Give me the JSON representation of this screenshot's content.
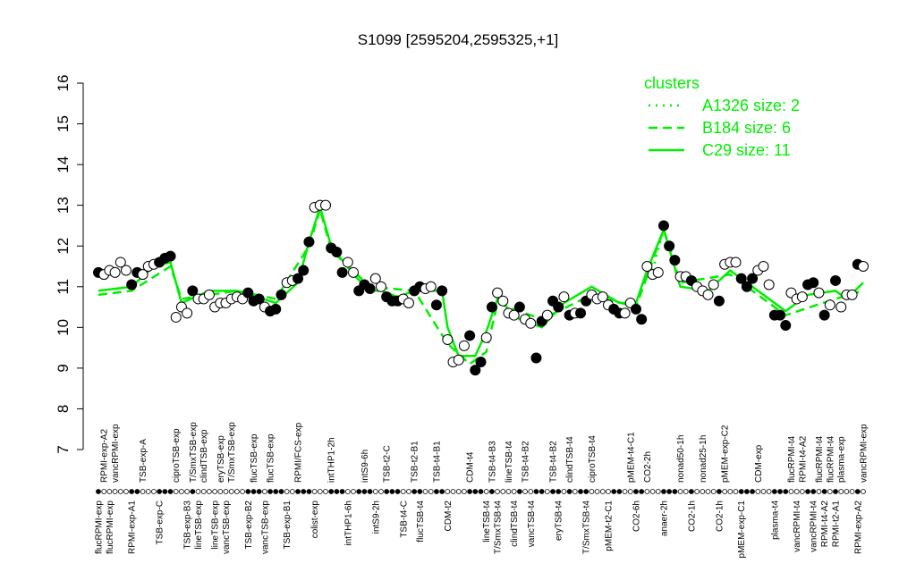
{
  "chart_data": {
    "type": "scatter",
    "title": "S1099 [2595204,2595325,+1]",
    "ylim": [
      7,
      16
    ],
    "yticks": [
      7,
      8,
      9,
      10,
      11,
      12,
      13,
      14,
      15,
      16
    ],
    "legend_title": "clusters",
    "legend_position": "top-right",
    "legend_color": "#00ee00",
    "categories": [
      "flucRPMI-exp",
      "RPMI-exp-A2",
      "flucRPMI-exp",
      "vancRPMI-exp",
      null,
      null,
      "RPMI-exp-A1",
      null,
      "TSB-exp-A",
      null,
      null,
      "TSB-exp-C",
      null,
      null,
      "ciproTSB-exp",
      null,
      "TSB-exp-B3",
      "T/SmxTSB-exp",
      "lineTSB-exp",
      "clindTSB-exp",
      null,
      "lineTSB-exp",
      "eryTSB-exp",
      "vancTSB-exp",
      "T/SmxTSB-exp",
      null,
      null,
      "TSB-exp-B2",
      "flucTSB-exp",
      null,
      "vancTSB-exp",
      "flucTSB-exp",
      null,
      null,
      "TSB-exp-B1",
      null,
      "RPMI/FCS-exp",
      null,
      null,
      "colist-exp",
      null,
      null,
      "intTHP1-2h",
      null,
      null,
      "intTHP1-6h",
      null,
      null,
      "intS9-6h",
      null,
      "intS9-2h",
      null,
      "TSB-t2-C",
      null,
      null,
      "TSB-t4-C",
      null,
      "TSB-t2-B1",
      "flucTSB-t4",
      null,
      null,
      "TSB-t4-B1",
      null,
      "CDM-t2",
      null,
      null,
      null,
      "CDM-t4",
      null,
      null,
      "lineTSB-t4",
      "TSB-t4-B3",
      "T/SmxTSB-t4",
      null,
      "lineTSB-t4",
      "clindTSB-t4",
      null,
      "TSB-t4-B2",
      "vancTSB-t4",
      null,
      null,
      null,
      "TSB-t4-B2",
      "eryTSB-t4",
      null,
      "clindTSB-t4",
      null,
      null,
      "T/SmxTSB-t4",
      "ciproTSB-t4",
      null,
      null,
      "pMEM-t2-C1",
      null,
      null,
      null,
      "pMEM-t4-C1",
      "CO2-6h",
      null,
      "CO2-2h",
      null,
      null,
      "anaer-2h",
      null,
      null,
      "nonad50-1h",
      null,
      "CO2-1h",
      null,
      "nonad25-1h",
      null,
      null,
      "CO2-1h",
      "pMEM-exp-C2",
      null,
      null,
      "pMEM-exp-C1",
      null,
      null,
      "CDM-exp",
      null,
      null,
      "plasma-t4",
      null,
      null,
      "flucRPMI-t4",
      "vancRPMI-t4",
      "RPMI-t4-A2",
      null,
      "vancRPMI-t4",
      "flucRPMI-t4",
      "RPMI-t4-A2",
      "flucRPMI-t4",
      "RPMI-t2-A1",
      "plasma-exp",
      null,
      null,
      "RPMI-exp-A2",
      "vancRPMI-exp"
    ],
    "points": {
      "values": [
        11.35,
        11.3,
        11.4,
        11.35,
        11.6,
        11.4,
        11.05,
        11.35,
        11.3,
        11.5,
        11.55,
        11.6,
        11.7,
        11.75,
        10.25,
        10.5,
        10.35,
        10.9,
        10.7,
        10.7,
        10.8,
        10.5,
        10.6,
        10.6,
        10.7,
        10.75,
        10.7,
        10.85,
        10.65,
        10.7,
        10.5,
        10.4,
        10.45,
        10.8,
        11.1,
        11.15,
        11.2,
        11.4,
        12.1,
        12.95,
        13.0,
        13.0,
        11.95,
        11.85,
        11.35,
        11.6,
        11.35,
        10.9,
        11.05,
        10.95,
        11.2,
        11.0,
        10.75,
        10.65,
        10.65,
        10.7,
        10.6,
        10.9,
        11.0,
        10.95,
        11.0,
        10.55,
        10.9,
        9.7,
        9.15,
        9.2,
        9.55,
        9.8,
        8.95,
        9.15,
        9.75,
        10.5,
        10.85,
        10.65,
        10.35,
        10.3,
        10.5,
        10.2,
        10.1,
        9.25,
        10.15,
        10.3,
        10.65,
        10.5,
        10.75,
        10.3,
        10.35,
        10.35,
        10.65,
        10.8,
        10.7,
        10.75,
        10.55,
        10.45,
        10.35,
        10.35,
        10.6,
        10.45,
        10.2,
        11.5,
        11.3,
        11.35,
        12.5,
        12.0,
        11.65,
        11.25,
        11.25,
        11.15,
        11.0,
        10.9,
        10.8,
        11.05,
        10.65,
        11.55,
        11.6,
        11.6,
        11.2,
        11.0,
        11.2,
        11.4,
        11.5,
        11.05,
        10.3,
        10.3,
        10.05,
        10.85,
        10.7,
        10.75,
        11.05,
        11.1,
        10.85,
        10.3,
        10.55,
        11.15,
        10.5,
        10.8,
        10.8,
        11.55,
        11.5
      ],
      "filled": [
        true,
        false,
        false,
        false,
        false,
        false,
        true,
        true,
        false,
        false,
        false,
        true,
        true,
        true,
        false,
        false,
        false,
        true,
        false,
        false,
        false,
        false,
        false,
        false,
        false,
        false,
        false,
        true,
        true,
        true,
        false,
        true,
        true,
        true,
        false,
        false,
        true,
        true,
        true,
        false,
        false,
        false,
        true,
        true,
        true,
        false,
        false,
        true,
        true,
        true,
        false,
        false,
        true,
        true,
        true,
        false,
        false,
        true,
        true,
        false,
        false,
        true,
        true,
        false,
        false,
        false,
        false,
        true,
        true,
        true,
        false,
        true,
        false,
        false,
        false,
        false,
        true,
        false,
        false,
        true,
        true,
        false,
        true,
        true,
        false,
        true,
        false,
        true,
        true,
        false,
        false,
        false,
        false,
        true,
        true,
        false,
        false,
        true,
        true,
        false,
        false,
        false,
        true,
        true,
        true,
        false,
        false,
        true,
        false,
        false,
        false,
        false,
        true,
        false,
        false,
        false,
        true,
        true,
        true,
        false,
        false,
        false,
        true,
        true,
        true,
        false,
        false,
        false,
        true,
        true,
        false,
        true,
        false,
        true,
        false,
        false,
        false,
        true,
        false
      ]
    },
    "series": [
      {
        "name": "A1326 size: 2",
        "color": "#00ee00",
        "style": "dotted",
        "x": [
          38,
          40,
          42,
          70,
          100,
          102,
          104
        ],
        "values": [
          12.0,
          12.9,
          12.0,
          null,
          11.4,
          12.4,
          11.6
        ]
      },
      {
        "name": "B184 size: 6",
        "color": "#00ee00",
        "style": "dashed",
        "x": [
          0,
          6,
          13,
          15,
          25,
          32,
          38,
          40,
          42,
          49,
          57,
          63,
          67,
          70,
          72,
          80,
          89,
          97,
          102,
          105,
          114,
          124,
          133,
          138
        ],
        "values": [
          10.8,
          10.9,
          11.5,
          10.7,
          10.9,
          10.7,
          12.0,
          12.9,
          11.9,
          11.0,
          10.9,
          9.6,
          9.1,
          9.4,
          10.6,
          10.2,
          10.8,
          10.5,
          12.4,
          11.1,
          11.3,
          10.3,
          10.7,
          10.9
        ]
      },
      {
        "name": "C29 size: 11",
        "color": "#00ee00",
        "style": "solid",
        "x": [
          0,
          6,
          10,
          13,
          15,
          20,
          25,
          32,
          36,
          38,
          40,
          42,
          46,
          49,
          51,
          54,
          57,
          62,
          63,
          65,
          68,
          70,
          72,
          76,
          80,
          84,
          89,
          94,
          97,
          99,
          102,
          105,
          110,
          114,
          118,
          121,
          124,
          128,
          133,
          135,
          138
        ],
        "values": [
          10.9,
          11.0,
          11.5,
          11.6,
          10.6,
          10.9,
          10.9,
          10.6,
          11.1,
          12.1,
          12.95,
          12.0,
          11.3,
          10.9,
          10.9,
          10.75,
          10.9,
          10.9,
          10.0,
          9.3,
          9.3,
          9.9,
          10.7,
          10.2,
          10.0,
          10.6,
          11.0,
          10.6,
          10.6,
          11.4,
          12.4,
          11.0,
          10.9,
          11.4,
          11.0,
          10.7,
          10.4,
          10.8,
          10.9,
          10.7,
          11.1
        ]
      }
    ]
  }
}
